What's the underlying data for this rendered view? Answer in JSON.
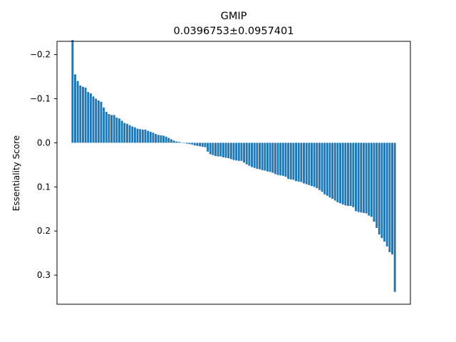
{
  "figure": {
    "title": "GMIP",
    "subtitle": "0.0396753±0.0957401"
  },
  "chart_data": {
    "type": "bar",
    "title": "GMIP",
    "subtitle": "0.0396753±0.0957401",
    "xlabel": "",
    "ylabel": "Essentiality Score",
    "y_inverted": true,
    "ylim": [
      -0.23,
      0.366
    ],
    "yticks": [
      -0.2,
      -0.1,
      0.0,
      0.1,
      0.2,
      0.3
    ],
    "ytick_labels": [
      "−0.2",
      "−0.1",
      "0.0",
      "0.1",
      "0.2",
      "0.3"
    ],
    "grid": false,
    "legend": "none",
    "bar_color": "#1f77b4",
    "values": [
      -0.233,
      -0.155,
      -0.14,
      -0.13,
      -0.127,
      -0.125,
      -0.115,
      -0.112,
      -0.105,
      -0.1,
      -0.096,
      -0.093,
      -0.08,
      -0.07,
      -0.065,
      -0.063,
      -0.063,
      -0.057,
      -0.055,
      -0.05,
      -0.045,
      -0.043,
      -0.04,
      -0.037,
      -0.035,
      -0.032,
      -0.031,
      -0.03,
      -0.03,
      -0.027,
      -0.025,
      -0.023,
      -0.02,
      -0.018,
      -0.017,
      -0.016,
      -0.014,
      -0.011,
      -0.008,
      -0.005,
      -0.003,
      -0.002,
      0.0,
      0.001,
      0.002,
      0.003,
      0.004,
      0.006,
      0.007,
      0.008,
      0.009,
      0.01,
      0.02,
      0.026,
      0.028,
      0.03,
      0.031,
      0.031,
      0.033,
      0.034,
      0.035,
      0.037,
      0.039,
      0.04,
      0.041,
      0.041,
      0.045,
      0.049,
      0.052,
      0.055,
      0.057,
      0.059,
      0.06,
      0.062,
      0.063,
      0.065,
      0.066,
      0.068,
      0.071,
      0.073,
      0.074,
      0.075,
      0.077,
      0.082,
      0.083,
      0.084,
      0.087,
      0.088,
      0.089,
      0.092,
      0.094,
      0.096,
      0.098,
      0.1,
      0.103,
      0.107,
      0.111,
      0.117,
      0.12,
      0.124,
      0.127,
      0.131,
      0.135,
      0.137,
      0.14,
      0.142,
      0.143,
      0.143,
      0.146,
      0.155,
      0.157,
      0.158,
      0.159,
      0.16,
      0.165,
      0.168,
      0.179,
      0.193,
      0.208,
      0.216,
      0.224,
      0.235,
      0.248,
      0.253,
      0.338
    ]
  }
}
